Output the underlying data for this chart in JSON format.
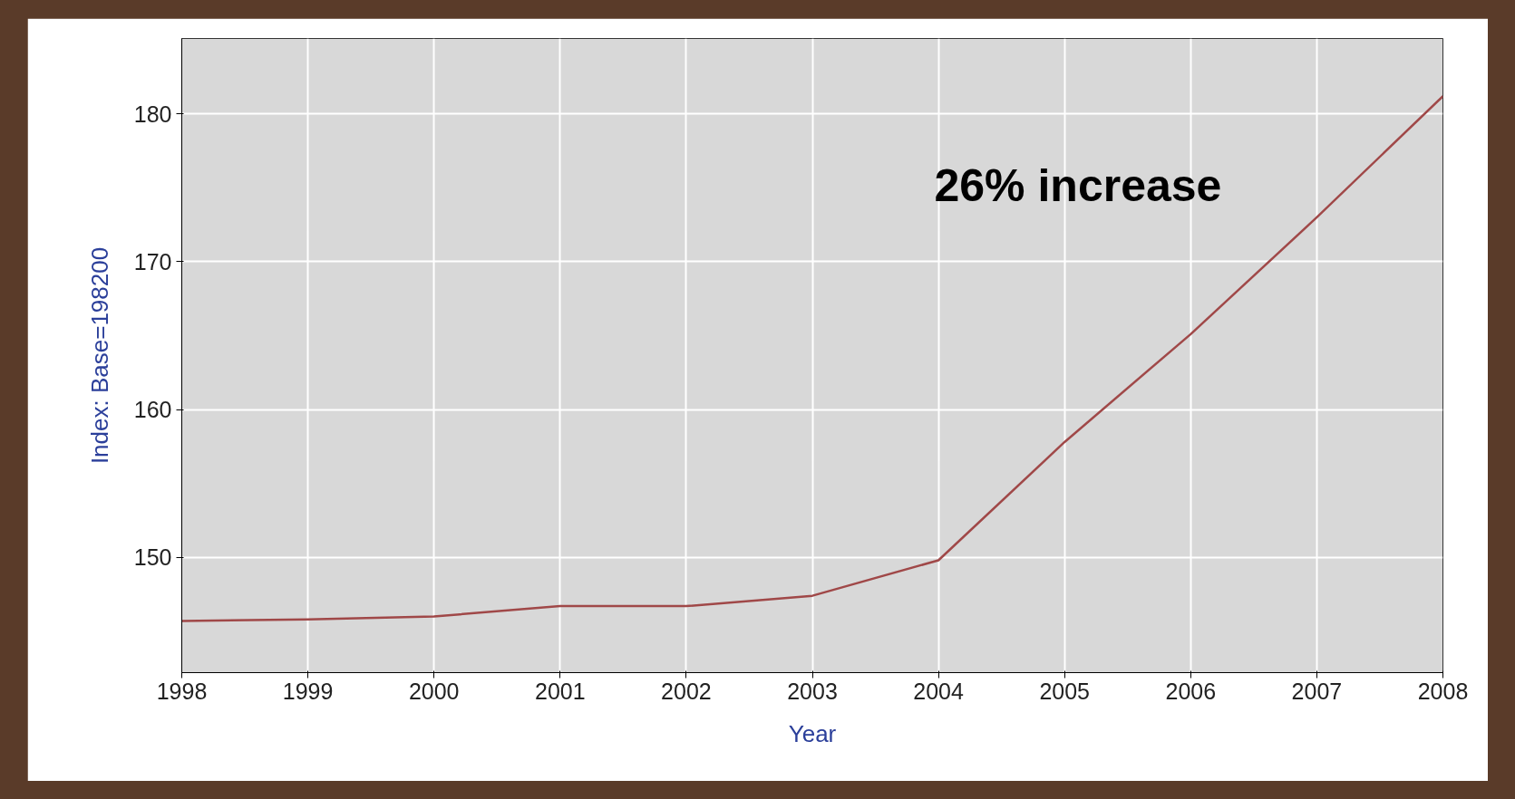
{
  "chart_data": {
    "type": "line",
    "xlabel": "Year",
    "ylabel": "Index: Base=198200",
    "x": [
      1998,
      1999,
      2000,
      2001,
      2002,
      2003,
      2004,
      2005,
      2006,
      2007,
      2008
    ],
    "series": [
      {
        "color": "#a04848",
        "values": [
          145.7,
          145.8,
          146.0,
          146.7,
          146.7,
          147.4,
          149.8,
          157.8,
          165.1,
          173.0,
          181.2
        ]
      }
    ],
    "xlim": [
      1998,
      2008
    ],
    "ylim": [
      142.2,
      185.1
    ],
    "xticks": [
      1998,
      1999,
      2000,
      2001,
      2002,
      2003,
      2004,
      2005,
      2006,
      2007,
      2008
    ],
    "yticks": [
      150,
      160,
      170,
      180
    ],
    "grid": true,
    "marker": "none",
    "line_style": "solid",
    "annotations": [
      "26% increase"
    ]
  }
}
